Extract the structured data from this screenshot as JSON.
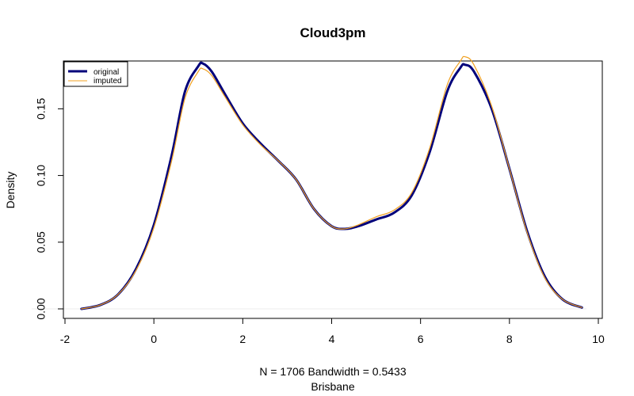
{
  "chart_data": {
    "type": "line",
    "title": "Cloud3pm",
    "xlabel_line1": "N = 1706   Bandwidth = 0.5433",
    "xlabel_line2": "Brisbane",
    "ylabel": "Density",
    "xlim": [
      -2,
      10
    ],
    "ylim": [
      0,
      0.19
    ],
    "x_ticks": [
      -2,
      0,
      2,
      4,
      6,
      8,
      10
    ],
    "y_ticks": [
      0.0,
      0.05,
      0.1,
      0.15
    ],
    "x_tick_labels": [
      "-2",
      "0",
      "2",
      "4",
      "6",
      "8",
      "10"
    ],
    "y_tick_labels": [
      "0.00",
      "0.05",
      "0.10",
      "0.15"
    ],
    "grid": false,
    "legend_position": "top-left",
    "series": [
      {
        "name": "original",
        "color": "#00007a",
        "x": [
          -1.63,
          -1.2,
          -0.8,
          -0.4,
          0,
          0.4,
          0.7,
          1.0,
          1.1,
          1.3,
          1.6,
          2.0,
          2.4,
          2.8,
          3.2,
          3.6,
          4.0,
          4.3,
          4.6,
          5.0,
          5.4,
          5.8,
          6.2,
          6.6,
          6.9,
          7.0,
          7.2,
          7.6,
          8.0,
          8.4,
          8.8,
          9.2,
          9.63
        ],
        "y": [
          0.0,
          0.003,
          0.011,
          0.03,
          0.063,
          0.115,
          0.163,
          0.182,
          0.184,
          0.178,
          0.161,
          0.139,
          0.124,
          0.111,
          0.097,
          0.075,
          0.062,
          0.06,
          0.062,
          0.067,
          0.072,
          0.085,
          0.117,
          0.163,
          0.181,
          0.183,
          0.178,
          0.15,
          0.105,
          0.058,
          0.024,
          0.007,
          0.001
        ]
      },
      {
        "name": "imputed",
        "color": "#f0a020",
        "x": [
          -1.63,
          -1.2,
          -0.8,
          -0.4,
          0,
          0.4,
          0.7,
          1.0,
          1.1,
          1.3,
          1.6,
          2.0,
          2.4,
          2.8,
          3.2,
          3.6,
          4.0,
          4.3,
          4.6,
          5.0,
          5.4,
          5.8,
          6.2,
          6.6,
          6.9,
          7.0,
          7.2,
          7.6,
          8.0,
          8.4,
          8.8,
          9.2,
          9.63
        ],
        "y": [
          0.0,
          0.003,
          0.011,
          0.029,
          0.061,
          0.111,
          0.158,
          0.178,
          0.18,
          0.175,
          0.159,
          0.138,
          0.123,
          0.111,
          0.097,
          0.075,
          0.062,
          0.06,
          0.063,
          0.069,
          0.074,
          0.087,
          0.12,
          0.168,
          0.186,
          0.189,
          0.183,
          0.152,
          0.105,
          0.057,
          0.023,
          0.007,
          0.001
        ]
      }
    ]
  }
}
